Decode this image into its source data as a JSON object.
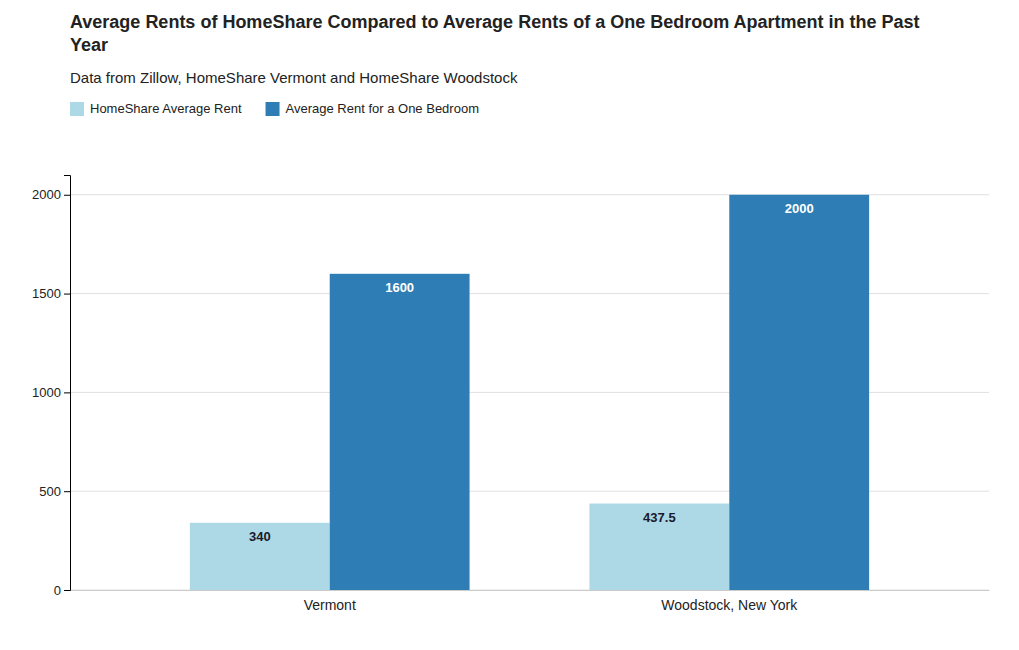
{
  "chart_data": {
    "type": "bar",
    "title": "Average Rents of HomeShare Compared to Average Rents of a One Bedroom Apartment in the Past\nYear",
    "subtitle": "Data from Zillow, HomeShare Vermont and HomeShare Woodstock",
    "categories": [
      "Vermont",
      "Woodstock, New York"
    ],
    "series": [
      {
        "name": "HomeShare Average Rent",
        "color": "#add8e6",
        "values": [
          340,
          437.5
        ]
      },
      {
        "name": "Average Rent for a One Bedroom",
        "color": "#2e7db5",
        "values": [
          1600,
          2000
        ]
      }
    ],
    "ylim": [
      0,
      2100
    ],
    "yticks": [
      0,
      500,
      1000,
      1500,
      2000
    ],
    "grid": true,
    "legend": "top-left",
    "data_labels": true
  }
}
